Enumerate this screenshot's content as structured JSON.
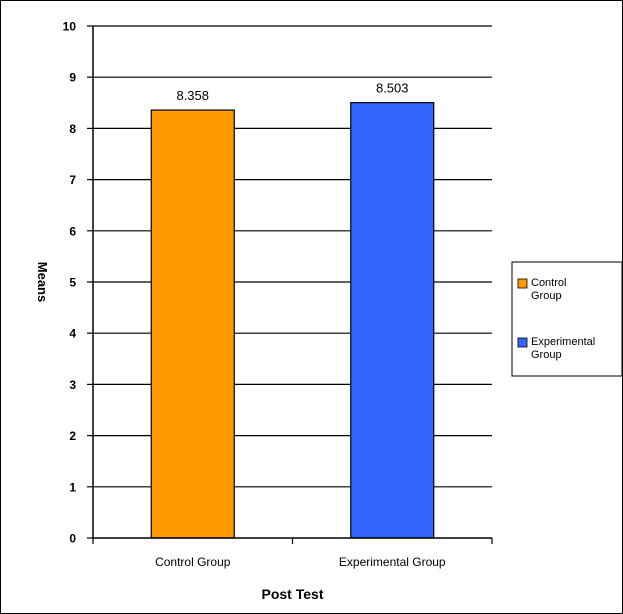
{
  "chart_data": {
    "type": "bar",
    "title": "",
    "xlabel": "Post Test",
    "ylabel": "Means",
    "categories": [
      "Control Group",
      "Experimental Group"
    ],
    "series": [
      {
        "name": "Control Group",
        "values": [
          8.358,
          null
        ],
        "color": "#FF9900"
      },
      {
        "name": "Experimental Group",
        "values": [
          null,
          8.503
        ],
        "color": "#3366FF"
      }
    ],
    "data_labels": [
      "8.358",
      "8.503"
    ],
    "ylim": [
      0,
      10
    ],
    "yticks": [
      "0",
      "1",
      "2",
      "3",
      "4",
      "5",
      "6",
      "7",
      "8",
      "9",
      "10"
    ],
    "grid": true,
    "legend": {
      "position": "right",
      "entries": [
        {
          "line1": "Control",
          "line2": "Group",
          "color": "#FF9900"
        },
        {
          "line1": "Experimental",
          "line2": "Group",
          "color": "#3366FF"
        }
      ]
    },
    "plot_background": "#FFFFFF"
  }
}
